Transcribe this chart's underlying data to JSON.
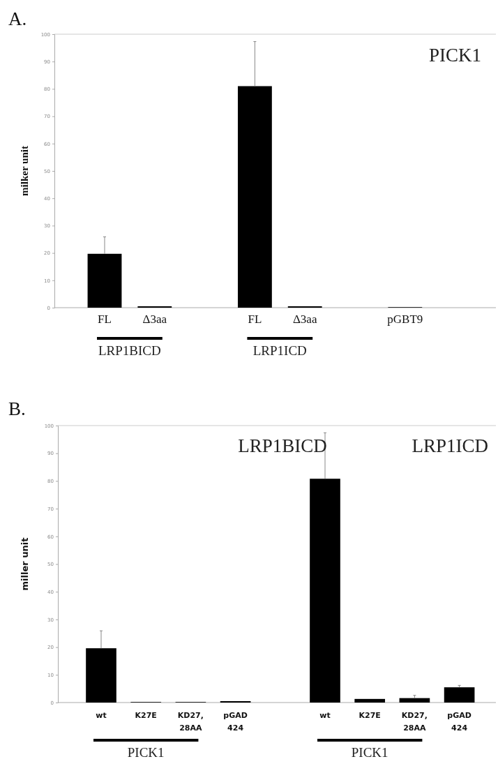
{
  "chart_data": [
    {
      "type": "bar",
      "title": "A.",
      "ylabel": "milker unit",
      "categories": [
        "FL",
        "Δ3aa",
        null,
        "FL",
        "Δ3aa",
        null,
        "pGBT9"
      ],
      "values": [
        19.7,
        0.5,
        null,
        81.0,
        0.5,
        null,
        0.2
      ],
      "color": "#000000",
      "errors": [
        [
          19.7,
          25.9
        ],
        null,
        null,
        [
          81.0,
          97.3
        ],
        null,
        null,
        null
      ],
      "ylim": [
        0,
        100
      ],
      "yticks": [
        0,
        10,
        20,
        30,
        40,
        50,
        60,
        70,
        80,
        90,
        100
      ],
      "annotations": [
        "PICK1",
        "LRP1BICD",
        "LRP1ICD"
      ]
    },
    {
      "type": "bar",
      "title": "B.",
      "ylabel": "miller unit",
      "categories": [
        "wt",
        "K27E",
        "KD27, 28AA",
        "pGAD 424",
        null,
        "wt",
        "K27E",
        "KD27, 28AA",
        "pGAD 424"
      ],
      "values": [
        19.6,
        0.2,
        0.2,
        0.5,
        null,
        80.8,
        1.3,
        1.6,
        5.5
      ],
      "color": "#000000",
      "errors": [
        [
          19.6,
          25.9
        ],
        null,
        null,
        null,
        null,
        [
          80.8,
          97.4
        ],
        null,
        [
          1.6,
          2.6
        ],
        [
          5.5,
          6.2
        ]
      ],
      "ylim": [
        0,
        100
      ],
      "yticks": [
        0,
        10,
        20,
        30,
        40,
        50,
        60,
        70,
        80,
        90,
        100
      ],
      "annotations": [
        "LRP1BICD",
        "LRP1ICD",
        "PICK1",
        "PICK1"
      ]
    }
  ]
}
